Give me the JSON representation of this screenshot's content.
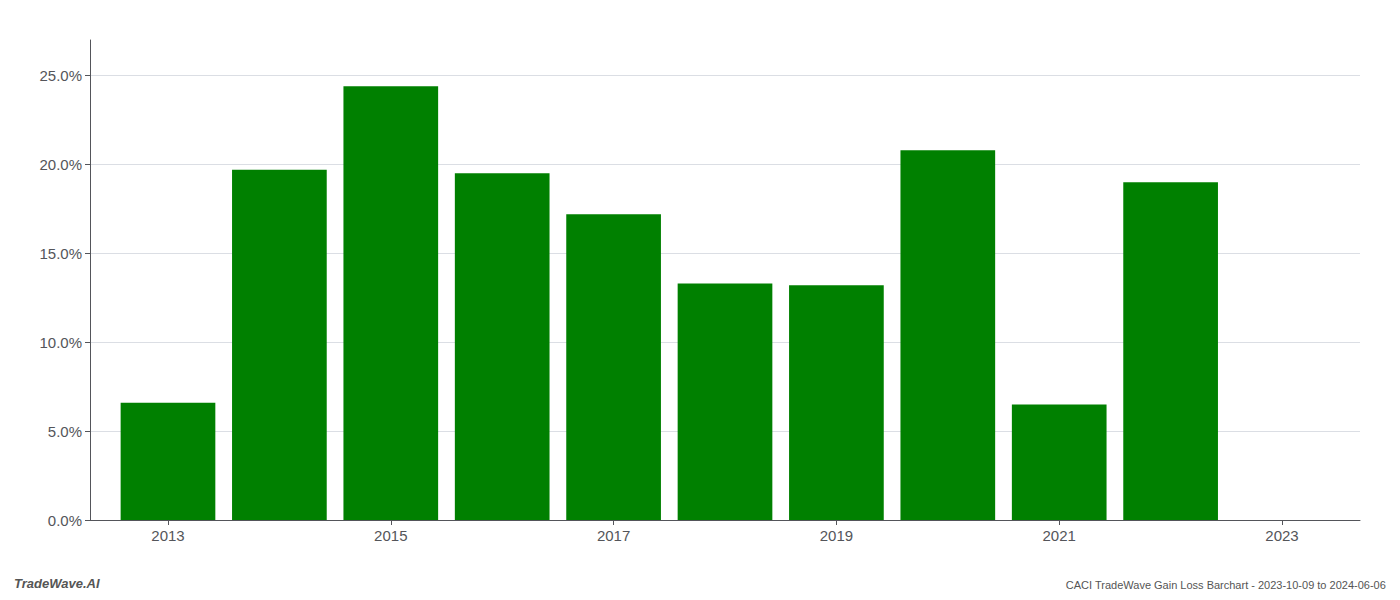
{
  "chart_data": {
    "type": "bar",
    "x": [
      2013,
      2014,
      2015,
      2016,
      2017,
      2018,
      2019,
      2020,
      2021,
      2022
    ],
    "values": [
      0.066,
      0.197,
      0.244,
      0.195,
      0.172,
      0.133,
      0.132,
      0.208,
      0.065,
      0.19
    ],
    "color": "#008000",
    "xlim": [
      2012.3,
      2023.7
    ],
    "xticks": [
      2013,
      2015,
      2017,
      2019,
      2021,
      2023
    ],
    "ylim": [
      0,
      0.27
    ],
    "yticks": [
      {
        "value": 0.0,
        "label": "0.0%"
      },
      {
        "value": 0.05,
        "label": "5.0%"
      },
      {
        "value": 0.1,
        "label": "10.0%"
      },
      {
        "value": 0.15,
        "label": "15.0%"
      },
      {
        "value": 0.2,
        "label": "20.0%"
      },
      {
        "value": 0.25,
        "label": "25.0%"
      }
    ],
    "grid": true,
    "annotations": [
      "TradeWave.AI",
      "CACI TradeWave Gain Loss Barchart - 2023-10-09 to 2024-06-06"
    ]
  }
}
